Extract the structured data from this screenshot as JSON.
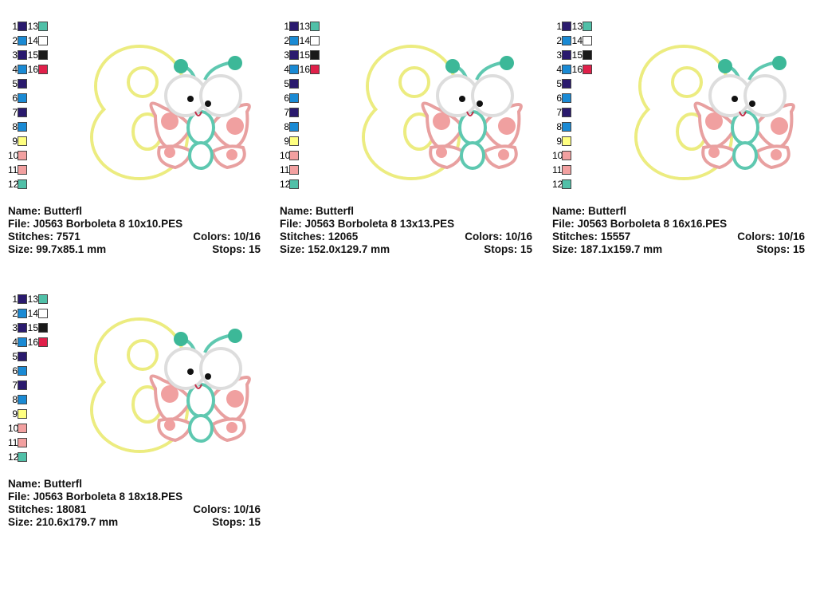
{
  "palette": [
    {
      "num": "1",
      "color": "#2a1a6e"
    },
    {
      "num": "2",
      "color": "#1a8ad4"
    },
    {
      "num": "3",
      "color": "#2a1a6e"
    },
    {
      "num": "4",
      "color": "#1a8ad4"
    },
    {
      "num": "5",
      "color": "#2a1a6e"
    },
    {
      "num": "6",
      "color": "#1a8ad4"
    },
    {
      "num": "7",
      "color": "#2a1a6e"
    },
    {
      "num": "8",
      "color": "#1a8ad4"
    },
    {
      "num": "9",
      "color": "#ffff80"
    },
    {
      "num": "10",
      "color": "#f2a0a0"
    },
    {
      "num": "11",
      "color": "#f2a0a0"
    },
    {
      "num": "12",
      "color": "#50c0a8"
    },
    {
      "num": "13",
      "color": "#50c0a8"
    },
    {
      "num": "14",
      "color": "#ffffff"
    },
    {
      "num": "15",
      "color": "#1a1a1a"
    },
    {
      "num": "16",
      "color": "#e0204a"
    }
  ],
  "designs": [
    {
      "name": "Name: Butterfl",
      "file": "File: J0563 Borboleta 8 10x10.PES",
      "stitches": "Stitches: 7571",
      "colors": "Colors: 10/16",
      "size": "Size: 99.7x85.1 mm",
      "stops": "Stops: 15"
    },
    {
      "name": "Name: Butterfl",
      "file": "File: J0563 Borboleta 8 13x13.PES",
      "stitches": "Stitches: 12065",
      "colors": "Colors: 10/16",
      "size": "Size: 152.0x129.7 mm",
      "stops": "Stops: 15"
    },
    {
      "name": "Name: Butterfl",
      "file": "File: J0563 Borboleta 8 16x16.PES",
      "stitches": "Stitches: 15557",
      "colors": "Colors: 10/16",
      "size": "Size: 187.1x159.7 mm",
      "stops": "Stops: 15"
    },
    {
      "name": "Name: Butterfl",
      "file": "File: J0563 Borboleta 8 18x18.PES",
      "stitches": "Stitches: 18081",
      "colors": "Colors: 10/16",
      "size": "Size: 210.6x179.7 mm",
      "stops": "Stops: 15"
    }
  ]
}
